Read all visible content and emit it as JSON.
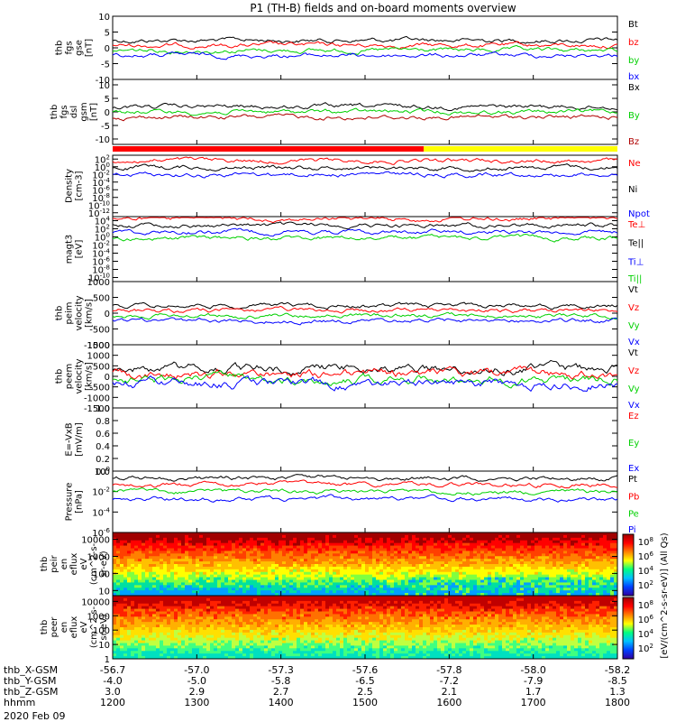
{
  "title": "P1 (TH-B) fields and on-board moments overview",
  "date_label": "2020 Feb 09",
  "colorbar_label": "[eV/(cm^2-s-sr-eV)]",
  "colorbar_label2": "[eV/(cm^2-s-sr-eV)] (All Qs)",
  "colorbar_ticks": [
    "10^8",
    "10^6",
    "10^4",
    "10^2"
  ],
  "ephemeris": {
    "rows": [
      {
        "name": "thb_X-GSM",
        "values": [
          "-56.7",
          "-57.0",
          "-57.3",
          "-57.6",
          "-57.8",
          "-58.0",
          "-58.2"
        ]
      },
      {
        "name": "thb_Y-GSM",
        "values": [
          "-4.0",
          "-5.0",
          "-5.8",
          "-6.5",
          "-7.2",
          "-7.9",
          "-8.5"
        ]
      },
      {
        "name": "thb_Z-GSM",
        "values": [
          "3.0",
          "2.9",
          "2.7",
          "2.5",
          "2.1",
          "1.7",
          "1.3"
        ]
      },
      {
        "name": "hhmm",
        "values": [
          "1200",
          "1300",
          "1400",
          "1500",
          "1600",
          "1700",
          "1800"
        ]
      }
    ]
  },
  "colors": {
    "black": "#000000",
    "red": "#ff0000",
    "green": "#00d000",
    "blue": "#0000ff",
    "darkred": "#b00000",
    "yellow": "#ffff00"
  },
  "chart_data": [
    {
      "type": "line",
      "ylabel": [
        "thb",
        "fgs",
        "gse",
        "[nT]"
      ],
      "ylim": [
        -10,
        10
      ],
      "yticks": [
        {
          "v": 10,
          "t": "10"
        },
        {
          "v": 5,
          "t": "5"
        },
        {
          "v": 0,
          "t": "0"
        },
        {
          "v": -5,
          "t": "-5"
        },
        {
          "v": -10,
          "t": "-10"
        }
      ],
      "series": [
        {
          "name": "Bt",
          "color": "#000000"
        },
        {
          "name": "bz",
          "color": "#ff0000"
        },
        {
          "name": "by",
          "color": "#00d000"
        },
        {
          "name": "bx",
          "color": "#0000ff"
        }
      ]
    },
    {
      "type": "line",
      "ylabel": [
        "thb",
        "fgs",
        "dsl",
        "gsm",
        "[nT]"
      ],
      "ylim": [
        -12,
        12
      ],
      "yticks": [
        {
          "v": 10,
          "t": "10"
        },
        {
          "v": 5,
          "t": "5"
        },
        {
          "v": 0,
          "t": "0"
        },
        {
          "v": -5,
          "t": "-5"
        },
        {
          "v": -10,
          "t": "-10"
        }
      ],
      "series": [
        {
          "name": "Bx",
          "color": "#000000"
        },
        {
          "name": "By",
          "color": "#00d000"
        },
        {
          "name": "Bz",
          "color": "#b00000"
        }
      ]
    },
    {
      "type": "line",
      "ylabel": [
        "Density",
        "[cm-3]"
      ],
      "scale": "log",
      "ylim": [
        -13,
        3
      ],
      "yticks": [
        {
          "v": 2,
          "t": "10^2"
        },
        {
          "v": 0,
          "t": "10^0"
        },
        {
          "v": -2,
          "t": "10^-2"
        },
        {
          "v": -4,
          "t": "10^-4"
        },
        {
          "v": -6,
          "t": "10^-6"
        },
        {
          "v": -8,
          "t": "10^-8"
        },
        {
          "v": -10,
          "t": "10^-10"
        },
        {
          "v": -12,
          "t": "10^-12"
        }
      ],
      "series": [
        {
          "name": "Ne",
          "color": "#ff0000"
        },
        {
          "name": "Ni",
          "color": "#000000"
        },
        {
          "name": "Npot",
          "color": "#0000ff"
        }
      ]
    },
    {
      "type": "line",
      "ylabel": [
        "magt3",
        "[eV]"
      ],
      "scale": "log",
      "ylim": [
        -11,
        5
      ],
      "yticks": [
        {
          "v": 4,
          "t": "10^4"
        },
        {
          "v": 2,
          "t": "10^2"
        },
        {
          "v": 0,
          "t": "10^0"
        },
        {
          "v": -2,
          "t": "10^-2"
        },
        {
          "v": -4,
          "t": "10^-4"
        },
        {
          "v": -6,
          "t": "10^-6"
        },
        {
          "v": -8,
          "t": "10^-8"
        },
        {
          "v": -10,
          "t": "10^-10"
        }
      ],
      "series": [
        {
          "name": "Te⊥",
          "color": "#ff0000"
        },
        {
          "name": "Te||",
          "color": "#000000"
        },
        {
          "name": "Ti⊥",
          "color": "#0000ff"
        },
        {
          "name": "Ti||",
          "color": "#00d000"
        }
      ]
    },
    {
      "type": "line",
      "ylabel": [
        "thb",
        "peim",
        "velocity",
        "[km/s]"
      ],
      "ylim": [
        -1000,
        1000
      ],
      "yticks": [
        {
          "v": 1000,
          "t": "1000"
        },
        {
          "v": 500,
          "t": "500"
        },
        {
          "v": 0,
          "t": "0"
        },
        {
          "v": -500,
          "t": "-500"
        },
        {
          "v": -1000,
          "t": "-1000"
        }
      ],
      "series": [
        {
          "name": "Vt",
          "color": "#000000"
        },
        {
          "name": "Vz",
          "color": "#ff0000"
        },
        {
          "name": "Vy",
          "color": "#00d000"
        },
        {
          "name": "Vx",
          "color": "#0000ff"
        }
      ]
    },
    {
      "type": "line",
      "ylabel": [
        "thb",
        "peem",
        "velocity",
        "[km/s]"
      ],
      "ylim": [
        -1500,
        1500
      ],
      "yticks": [
        {
          "v": 1500,
          "t": "1500"
        },
        {
          "v": 1000,
          "t": "1000"
        },
        {
          "v": 500,
          "t": "500"
        },
        {
          "v": 0,
          "t": "0"
        },
        {
          "v": -500,
          "t": "-500"
        },
        {
          "v": -1000,
          "t": "-1000"
        },
        {
          "v": -1500,
          "t": "-1500"
        }
      ],
      "series": [
        {
          "name": "Vt",
          "color": "#000000"
        },
        {
          "name": "Vz",
          "color": "#ff0000"
        },
        {
          "name": "Vy",
          "color": "#00d000"
        },
        {
          "name": "Vx",
          "color": "#0000ff"
        }
      ]
    },
    {
      "type": "line",
      "ylabel": [
        "E=-VxB",
        "[mV/m]"
      ],
      "ylim": [
        0,
        1
      ],
      "yticks": [
        {
          "v": 1,
          "t": "1.0"
        },
        {
          "v": 0.8,
          "t": "0.8"
        },
        {
          "v": 0.6,
          "t": "0.6"
        },
        {
          "v": 0.4,
          "t": "0.4"
        },
        {
          "v": 0.2,
          "t": "0.2"
        },
        {
          "v": 0,
          "t": "0.0"
        }
      ],
      "series": [
        {
          "name": "Ez",
          "color": "#ff0000"
        },
        {
          "name": "Ey",
          "color": "#00d000"
        },
        {
          "name": "Ex",
          "color": "#0000ff"
        }
      ]
    },
    {
      "type": "line",
      "ylabel": [
        "Pressure",
        "[nPa]"
      ],
      "scale": "log",
      "ylim": [
        -6,
        0
      ],
      "yticks": [
        {
          "v": 0,
          "t": "10^0"
        },
        {
          "v": -2,
          "t": "10^-2"
        },
        {
          "v": -4,
          "t": "10^-4"
        },
        {
          "v": -6,
          "t": "10^-6"
        }
      ],
      "series": [
        {
          "name": "Pt",
          "color": "#000000"
        },
        {
          "name": "Pb",
          "color": "#ff0000"
        },
        {
          "name": "Pe",
          "color": "#00d000"
        },
        {
          "name": "Pi",
          "color": "#0000ff"
        }
      ]
    },
    {
      "type": "heatmap",
      "ylabel": [
        "thb",
        "peir",
        "en",
        "eflux",
        "eV",
        "(cm^2-s-",
        "sr-eV)"
      ],
      "scale": "log",
      "ylim": [
        0.7,
        4.4
      ],
      "yticks": [
        {
          "v": 4,
          "t": "10000"
        },
        {
          "v": 3,
          "t": "1000"
        },
        {
          "v": 2,
          "t": "100"
        },
        {
          "v": 1,
          "t": "10"
        }
      ]
    },
    {
      "type": "heatmap",
      "ylabel": [
        "thb",
        "peer",
        "en",
        "eflux",
        "eV",
        "(cm^2-s-",
        "sr-eV)"
      ],
      "scale": "log",
      "ylim": [
        0,
        4.4
      ],
      "yticks": [
        {
          "v": 4,
          "t": "10000"
        },
        {
          "v": 3,
          "t": "1000"
        },
        {
          "v": 2,
          "t": "100"
        },
        {
          "v": 1,
          "t": "10"
        },
        {
          "v": 0,
          "t": "1"
        }
      ]
    }
  ]
}
